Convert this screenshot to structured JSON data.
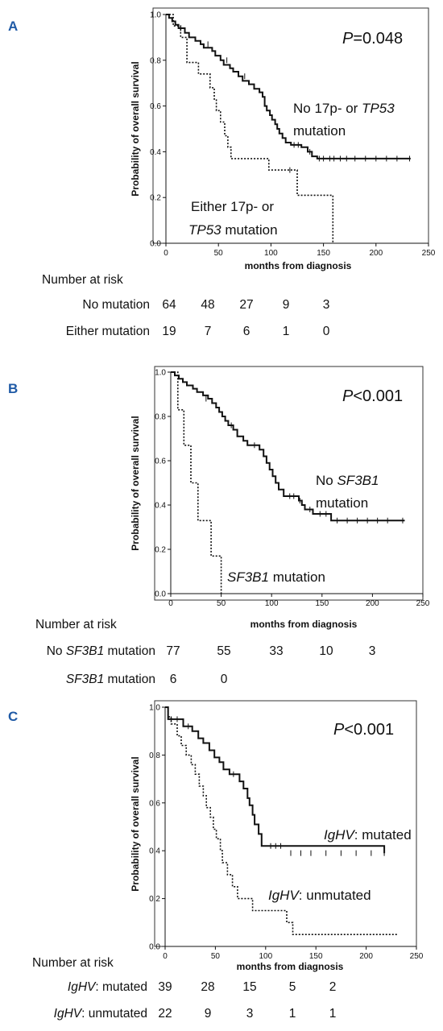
{
  "chart_data": [
    {
      "panel": "A",
      "type": "line",
      "p_value_label": "P",
      "p_value_rest": "=0.048",
      "xlabel": "months from diagnosis",
      "ylabel": "Probability of overall survival",
      "xlim": [
        0,
        250
      ],
      "ylim": [
        0,
        1
      ],
      "x_ticks": [
        "0",
        "50",
        "100",
        "150",
        "200",
        "250"
      ],
      "y_ticks": [
        "0.0",
        "0.2",
        "0.4",
        "0.6",
        "0.8",
        "1.0"
      ],
      "series": [
        {
          "style": "solid",
          "label_lines": [
            [
              {
                "t": "No 17p- or "
              },
              {
                "t": "TP53",
                "i": true
              }
            ],
            [
              {
                "t": "mutation"
              }
            ]
          ],
          "steps": [
            [
              0,
              1.0
            ],
            [
              3,
              0.985
            ],
            [
              6,
              0.97
            ],
            [
              9,
              0.955
            ],
            [
              12,
              0.94
            ],
            [
              18,
              0.92
            ],
            [
              22,
              0.9
            ],
            [
              28,
              0.885
            ],
            [
              33,
              0.87
            ],
            [
              36,
              0.855
            ],
            [
              44,
              0.84
            ],
            [
              47,
              0.82
            ],
            [
              52,
              0.8
            ],
            [
              55,
              0.78
            ],
            [
              61,
              0.765
            ],
            [
              64,
              0.75
            ],
            [
              69,
              0.73
            ],
            [
              73,
              0.71
            ],
            [
              79,
              0.695
            ],
            [
              84,
              0.675
            ],
            [
              89,
              0.66
            ],
            [
              92,
              0.64
            ],
            [
              94,
              0.6
            ],
            [
              96,
              0.58
            ],
            [
              99,
              0.56
            ],
            [
              101,
              0.54
            ],
            [
              104,
              0.52
            ],
            [
              106,
              0.5
            ],
            [
              108,
              0.48
            ],
            [
              111,
              0.46
            ],
            [
              114,
              0.44
            ],
            [
              119,
              0.43
            ],
            [
              129,
              0.42
            ],
            [
              135,
              0.4
            ],
            [
              139,
              0.38
            ],
            [
              144,
              0.37
            ],
            [
              233,
              0.37
            ]
          ],
          "censored": [
            [
              14,
              0.94
            ],
            [
              40,
              0.87
            ],
            [
              58,
              0.8
            ],
            [
              75,
              0.73
            ],
            [
              122,
              0.43
            ],
            [
              126,
              0.43
            ],
            [
              137,
              0.4
            ],
            [
              146,
              0.37
            ],
            [
              150,
              0.37
            ],
            [
              156,
              0.37
            ],
            [
              160,
              0.37
            ],
            [
              166,
              0.37
            ],
            [
              172,
              0.37
            ],
            [
              180,
              0.37
            ],
            [
              190,
              0.37
            ],
            [
              200,
              0.37
            ],
            [
              210,
              0.37
            ],
            [
              220,
              0.37
            ],
            [
              232,
              0.37
            ]
          ]
        },
        {
          "style": "dotted",
          "label_lines": [
            [
              {
                "t": "Either  17p- or"
              }
            ],
            [
              {
                "t": "TP53",
                "i": true
              },
              {
                "t": " mutation"
              }
            ]
          ],
          "steps": [
            [
              0,
              1.0
            ],
            [
              7,
              0.95
            ],
            [
              14,
              0.9
            ],
            [
              20,
              0.79
            ],
            [
              31,
              0.74
            ],
            [
              42,
              0.68
            ],
            [
              46,
              0.63
            ],
            [
              48,
              0.58
            ],
            [
              52,
              0.53
            ],
            [
              56,
              0.47
            ],
            [
              59,
              0.42
            ],
            [
              62,
              0.37
            ],
            [
              98,
              0.32
            ],
            [
              125,
              0.21
            ],
            [
              159,
              0.21
            ],
            [
              159,
              0.0
            ]
          ],
          "censored": [
            [
              118,
              0.32
            ]
          ]
        }
      ],
      "risk_table": {
        "title": "Number at risk",
        "rows": [
          {
            "label": [
              {
                "t": "No mutation"
              }
            ],
            "values": [
              "64",
              "48",
              "27",
              "9",
              "3"
            ]
          },
          {
            "label": [
              {
                "t": "Either mutation"
              }
            ],
            "values": [
              "19",
              "7",
              "6",
              "1",
              "0"
            ]
          }
        ]
      }
    },
    {
      "panel": "B",
      "type": "line",
      "p_value_label": "P",
      "p_value_rest": "<0.001",
      "xlabel": "months from diagnosis",
      "ylabel": "Probability of overall survival",
      "xlim": [
        0,
        250
      ],
      "ylim": [
        0,
        1
      ],
      "x_ticks": [
        "0",
        "50",
        "100",
        "150",
        "200",
        "250"
      ],
      "y_ticks": [
        "0.0",
        "0.2",
        "0.4",
        "0.6",
        "0.8",
        "1.0"
      ],
      "series": [
        {
          "style": "solid",
          "label_lines": [
            [
              {
                "t": "No "
              },
              {
                "t": "SF3B1",
                "i": true
              }
            ],
            [
              {
                "t": "mutation"
              }
            ]
          ],
          "steps": [
            [
              0,
              1.0
            ],
            [
              4,
              0.985
            ],
            [
              8,
              0.97
            ],
            [
              12,
              0.955
            ],
            [
              16,
              0.94
            ],
            [
              22,
              0.925
            ],
            [
              26,
              0.91
            ],
            [
              32,
              0.895
            ],
            [
              37,
              0.88
            ],
            [
              41,
              0.86
            ],
            [
              45,
              0.84
            ],
            [
              48,
              0.82
            ],
            [
              51,
              0.8
            ],
            [
              54,
              0.78
            ],
            [
              57,
              0.76
            ],
            [
              62,
              0.74
            ],
            [
              66,
              0.71
            ],
            [
              72,
              0.69
            ],
            [
              76,
              0.67
            ],
            [
              88,
              0.65
            ],
            [
              92,
              0.62
            ],
            [
              95,
              0.59
            ],
            [
              98,
              0.56
            ],
            [
              101,
              0.53
            ],
            [
              104,
              0.5
            ],
            [
              107,
              0.47
            ],
            [
              112,
              0.44
            ],
            [
              127,
              0.42
            ],
            [
              130,
              0.4
            ],
            [
              133,
              0.38
            ],
            [
              141,
              0.36
            ],
            [
              159,
              0.33
            ],
            [
              232,
              0.33
            ]
          ],
          "censored": [
            [
              35,
              0.88
            ],
            [
              60,
              0.76
            ],
            [
              83,
              0.67
            ],
            [
              118,
              0.44
            ],
            [
              122,
              0.44
            ],
            [
              128,
              0.42
            ],
            [
              138,
              0.38
            ],
            [
              148,
              0.36
            ],
            [
              154,
              0.36
            ],
            [
              165,
              0.33
            ],
            [
              175,
              0.33
            ],
            [
              185,
              0.33
            ],
            [
              195,
              0.33
            ],
            [
              205,
              0.33
            ],
            [
              215,
              0.33
            ],
            [
              230,
              0.33
            ]
          ]
        },
        {
          "style": "dotted",
          "label_lines": [
            [
              {
                "t": "SF3B1",
                "i": true
              },
              {
                "t": " mutation"
              }
            ]
          ],
          "steps": [
            [
              0,
              1.0
            ],
            [
              7,
              0.83
            ],
            [
              13,
              0.67
            ],
            [
              20,
              0.5
            ],
            [
              27,
              0.33
            ],
            [
              40,
              0.17
            ],
            [
              50,
              0.17
            ],
            [
              50,
              0.0
            ]
          ],
          "censored": []
        }
      ],
      "risk_table": {
        "title": "Number at risk",
        "rows": [
          {
            "label": [
              {
                "t": "No "
              },
              {
                "t": "SF3B1",
                "i": true
              },
              {
                "t": " mutation"
              }
            ],
            "values": [
              "77",
              "55",
              "33",
              "10",
              "3"
            ]
          },
          {
            "label": [
              {
                "t": "SF3B1",
                "i": true
              },
              {
                "t": " mutation"
              }
            ],
            "values": [
              "6",
              "0",
              "",
              "",
              ""
            ]
          }
        ]
      }
    },
    {
      "panel": "C",
      "type": "line",
      "p_value_label": "P",
      "p_value_rest": "<0.001",
      "xlabel": "months from diagnosis",
      "ylabel": "Probability of overall survival",
      "xlim": [
        0,
        250
      ],
      "ylim": [
        0,
        1
      ],
      "x_ticks": [
        "0",
        "50",
        "100",
        "150",
        "200",
        "250"
      ],
      "y_ticks": [
        "0.0",
        "0.2",
        "0.4",
        "0.6",
        "0.8",
        "1.0"
      ],
      "series": [
        {
          "style": "solid",
          "label_lines": [
            [
              {
                "t": "IgHV",
                "i": true
              },
              {
                "t": ": mutated"
              }
            ]
          ],
          "steps": [
            [
              0,
              1.0
            ],
            [
              3,
              0.95
            ],
            [
              18,
              0.92
            ],
            [
              27,
              0.9
            ],
            [
              33,
              0.87
            ],
            [
              38,
              0.85
            ],
            [
              44,
              0.82
            ],
            [
              49,
              0.79
            ],
            [
              54,
              0.77
            ],
            [
              58,
              0.74
            ],
            [
              64,
              0.72
            ],
            [
              74,
              0.69
            ],
            [
              78,
              0.66
            ],
            [
              82,
              0.62
            ],
            [
              84,
              0.59
            ],
            [
              87,
              0.55
            ],
            [
              89,
              0.51
            ],
            [
              93,
              0.47
            ],
            [
              96,
              0.42
            ],
            [
              218,
              0.39
            ]
          ],
          "censored": [
            [
              6,
              0.95
            ],
            [
              12,
              0.95
            ],
            [
              23,
              0.92
            ],
            [
              68,
              0.72
            ],
            [
              105,
              0.42
            ],
            [
              110,
              0.42
            ],
            [
              115,
              0.42
            ],
            [
              125,
              0.39
            ],
            [
              135,
              0.39
            ],
            [
              145,
              0.39
            ],
            [
              160,
              0.39
            ],
            [
              175,
              0.39
            ],
            [
              190,
              0.39
            ],
            [
              205,
              0.39
            ],
            [
              218,
              0.39
            ]
          ]
        },
        {
          "style": "dotted",
          "label_lines": [
            [
              {
                "t": "IgHV",
                "i": true
              },
              {
                "t": ": unmutated"
              }
            ]
          ],
          "steps": [
            [
              0,
              1.0
            ],
            [
              3,
              0.96
            ],
            [
              6,
              0.93
            ],
            [
              12,
              0.88
            ],
            [
              16,
              0.84
            ],
            [
              21,
              0.8
            ],
            [
              26,
              0.76
            ],
            [
              30,
              0.72
            ],
            [
              34,
              0.67
            ],
            [
              38,
              0.63
            ],
            [
              41,
              0.58
            ],
            [
              45,
              0.54
            ],
            [
              48,
              0.49
            ],
            [
              51,
              0.45
            ],
            [
              55,
              0.4
            ],
            [
              57,
              0.35
            ],
            [
              62,
              0.3
            ],
            [
              67,
              0.25
            ],
            [
              72,
              0.2
            ],
            [
              87,
              0.15
            ],
            [
              121,
              0.1
            ],
            [
              127,
              0.05
            ],
            [
              232,
              0.05
            ]
          ],
          "censored": []
        }
      ],
      "risk_table": {
        "title": "Number at risk",
        "rows": [
          {
            "label": [
              {
                "t": "IgHV",
                "i": true
              },
              {
                "t": ": mutated"
              }
            ],
            "values": [
              "39",
              "28",
              "15",
              "5",
              "2"
            ]
          },
          {
            "label": [
              {
                "t": "IgHV",
                "i": true
              },
              {
                "t": ": unmutated"
              }
            ],
            "values": [
              "22",
              "9",
              "3",
              "1",
              "1"
            ]
          }
        ]
      }
    }
  ]
}
